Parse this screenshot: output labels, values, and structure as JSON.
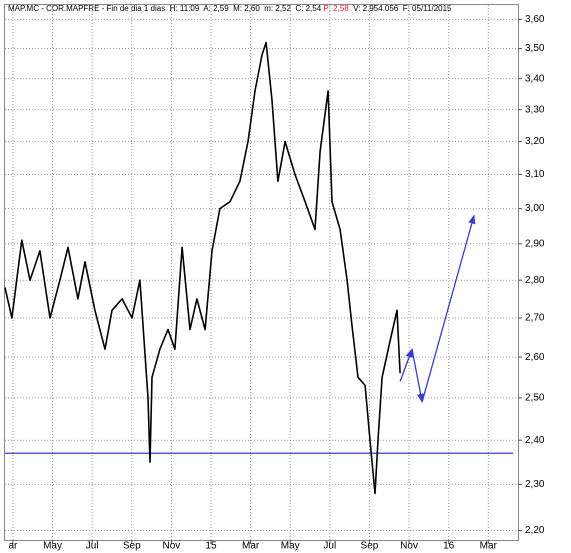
{
  "chart_data": {
    "type": "line",
    "title_parts": [
      {
        "text": "MAP.MC - COR.MAPFRE - Fin de dia 1 dias  H: 11:09  A: 2,59  M: 2,60  m: 2,52  C: 2,54 ",
        "color": "#000000"
      },
      {
        "text": "P: 2,58",
        "color": "#e02020"
      },
      {
        "text": "  V: 2.954.056  F: 05/11/2015",
        "color": "#000000"
      }
    ],
    "log_y": true,
    "grid": true,
    "xlim": [
      -0.4,
      25.5
    ],
    "ylim": [
      2.18,
      3.65
    ],
    "xticks": [
      {
        "value": 0,
        "label": "ar"
      },
      {
        "value": 2,
        "label": "May"
      },
      {
        "value": 4,
        "label": "Jul"
      },
      {
        "value": 6,
        "label": "Sep"
      },
      {
        "value": 8,
        "label": "Nov"
      },
      {
        "value": 10,
        "label": "15"
      },
      {
        "value": 12,
        "label": "Mar"
      },
      {
        "value": 14,
        "label": "May"
      },
      {
        "value": 16,
        "label": "Jul"
      },
      {
        "value": 18,
        "label": "Sep"
      },
      {
        "value": 20,
        "label": "Nov"
      },
      {
        "value": 22,
        "label": "16"
      },
      {
        "value": 24,
        "label": "Mar"
      }
    ],
    "yticks": [
      {
        "value": 2.2,
        "label": "2,20"
      },
      {
        "value": 2.3,
        "label": "2,30"
      },
      {
        "value": 2.4,
        "label": "2,40"
      },
      {
        "value": 2.5,
        "label": "2,50"
      },
      {
        "value": 2.6,
        "label": "2,60"
      },
      {
        "value": 2.7,
        "label": "2,70"
      },
      {
        "value": 2.8,
        "label": "2,80"
      },
      {
        "value": 2.9,
        "label": "2,90"
      },
      {
        "value": 3.0,
        "label": "3,00"
      },
      {
        "value": 3.1,
        "label": "3,10"
      },
      {
        "value": 3.2,
        "label": "3,20"
      },
      {
        "value": 3.3,
        "label": "3,30"
      },
      {
        "value": 3.4,
        "label": "3,40"
      },
      {
        "value": 3.5,
        "label": "3,50"
      },
      {
        "value": 3.6,
        "label": "3,60"
      }
    ],
    "x": [
      -0.4,
      -0.05,
      0.45,
      0.86,
      1.36,
      1.87,
      2.37,
      2.78,
      3.28,
      3.64,
      4.14,
      4.65,
      5.0,
      5.51,
      6.01,
      6.41,
      6.82,
      6.92,
      7.02,
      7.42,
      7.83,
      8.18,
      8.54,
      8.94,
      9.29,
      9.7,
      10.05,
      10.45,
      10.96,
      11.46,
      11.87,
      12.22,
      12.58,
      12.78,
      13.08,
      13.38,
      13.74,
      14.24,
      14.75,
      15.25,
      15.51,
      15.91,
      16.11,
      16.52,
      16.87,
      17.12,
      17.42,
      17.78,
      18.03,
      18.28,
      18.43,
      18.64,
      19.04,
      19.39,
      19.55
    ],
    "series": [
      {
        "color": "#000000",
        "values": [
          2.78,
          2.7,
          2.91,
          2.8,
          2.88,
          2.7,
          2.8,
          2.89,
          2.75,
          2.85,
          2.72,
          2.62,
          2.72,
          2.75,
          2.7,
          2.8,
          2.5,
          2.35,
          2.55,
          2.62,
          2.67,
          2.62,
          2.89,
          2.67,
          2.75,
          2.67,
          2.88,
          3.0,
          3.02,
          3.08,
          3.2,
          3.36,
          3.48,
          3.52,
          3.33,
          3.08,
          3.2,
          3.1,
          3.02,
          2.94,
          3.17,
          3.36,
          3.02,
          2.94,
          2.8,
          2.68,
          2.55,
          2.53,
          2.4,
          2.28,
          2.4,
          2.55,
          2.64,
          2.72,
          2.56
        ]
      }
    ],
    "support_line": 2.37,
    "support_color": "#3b3bd0",
    "projection": {
      "color": "#3b3bd0",
      "x": [
        19.55,
        20.15,
        20.66,
        23.28
      ],
      "y": [
        2.54,
        2.62,
        2.49,
        2.98
      ]
    }
  }
}
